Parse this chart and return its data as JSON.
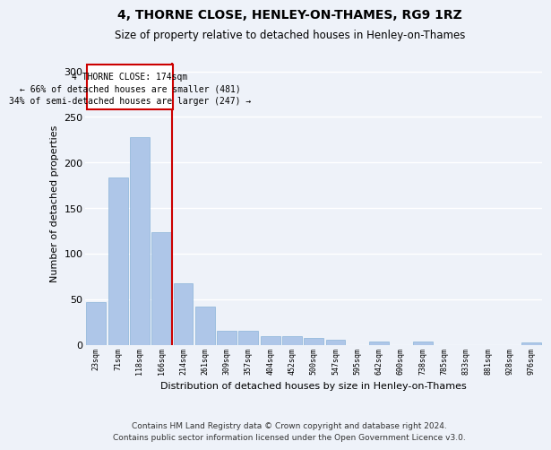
{
  "title": "4, THORNE CLOSE, HENLEY-ON-THAMES, RG9 1RZ",
  "subtitle": "Size of property relative to detached houses in Henley-on-Thames",
  "xlabel": "Distribution of detached houses by size in Henley-on-Thames",
  "ylabel": "Number of detached properties",
  "footer_line1": "Contains HM Land Registry data © Crown copyright and database right 2024.",
  "footer_line2": "Contains public sector information licensed under the Open Government Licence v3.0.",
  "annotation_line1": "4 THORNE CLOSE: 174sqm",
  "annotation_line2": "← 66% of detached houses are smaller (481)",
  "annotation_line3": "34% of semi-detached houses are larger (247) →",
  "categories": [
    "23sqm",
    "71sqm",
    "118sqm",
    "166sqm",
    "214sqm",
    "261sqm",
    "309sqm",
    "357sqm",
    "404sqm",
    "452sqm",
    "500sqm",
    "547sqm",
    "595sqm",
    "642sqm",
    "690sqm",
    "738sqm",
    "785sqm",
    "833sqm",
    "881sqm",
    "928sqm",
    "976sqm"
  ],
  "values": [
    47,
    184,
    228,
    124,
    67,
    42,
    15,
    15,
    9,
    9,
    7,
    5,
    0,
    3,
    0,
    3,
    0,
    0,
    0,
    0,
    2
  ],
  "bar_color": "#aec6e8",
  "bar_edge_color": "#8ab4d8",
  "vline_color": "#cc0000",
  "annotation_box_color": "#cc0000",
  "background_color": "#eef2f9",
  "grid_color": "#ffffff",
  "ylim": [
    0,
    310
  ],
  "yticks": [
    0,
    50,
    100,
    150,
    200,
    250,
    300
  ],
  "title_fontsize": 10,
  "subtitle_fontsize": 8.5
}
